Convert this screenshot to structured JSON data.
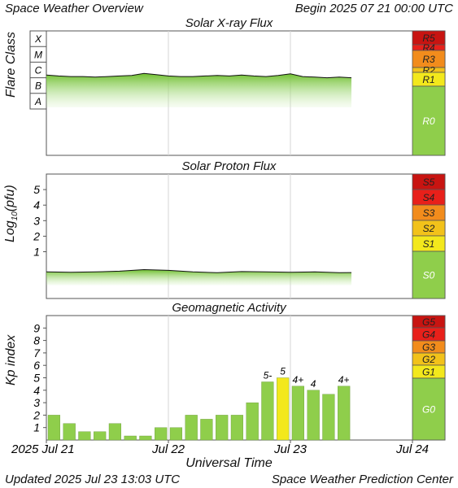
{
  "header": {
    "title": "Space Weather Overview",
    "begin": "Begin 2025 07 21 00:00 UTC"
  },
  "footer": {
    "updated": "Updated 2025 Jul 23 13:03 UTC",
    "source": "Space Weather Prediction Center"
  },
  "colors": {
    "green": "#8fce4b",
    "yellow": "#f3e81c",
    "gold": "#f2c21a",
    "orange": "#f28c1c",
    "red": "#e8201a",
    "dark_red": "#c81411",
    "flux_line": "#111111"
  },
  "chart_data": [
    {
      "type": "area",
      "title": "Solar X-ray Flux",
      "ylabel": "Flare Class",
      "y_classes": [
        "A",
        "B",
        "C",
        "M",
        "X"
      ],
      "x_ticks": [
        "2025 Jul 21",
        "Jul 22",
        "Jul 23",
        "Jul 24"
      ],
      "x_range_days": [
        0,
        3
      ],
      "series": [
        {
          "x_days": [
            0.0,
            0.1,
            0.2,
            0.3,
            0.4,
            0.5,
            0.6,
            0.7,
            0.8,
            0.9,
            1.0,
            1.1,
            1.2,
            1.3,
            1.4,
            1.5,
            1.6,
            1.7,
            1.8,
            1.9,
            2.0,
            2.1,
            2.2,
            2.3,
            2.4,
            2.5
          ],
          "flare_class": [
            "C1.5",
            "C1.3",
            "C1.2",
            "C1.2",
            "C1.1",
            "C1.2",
            "C1.3",
            "C1.4",
            "C1.9",
            "C1.6",
            "C1.3",
            "C1.2",
            "C1.2",
            "C1.3",
            "C1.4",
            "C1.3",
            "C1.5",
            "C1.3",
            "C1.2",
            "C1.4",
            "C1.8",
            "C1.2",
            "C1.1",
            "C1.0",
            "C1.1",
            "C1.0"
          ]
        }
      ],
      "scale": [
        {
          "label": "R5",
          "color": "dark_red"
        },
        {
          "label": "R4",
          "color": "red"
        },
        {
          "label": "R3",
          "color": "orange"
        },
        {
          "label": "R2",
          "color": "gold"
        },
        {
          "label": "R1",
          "color": "yellow"
        },
        {
          "label": "R0",
          "color": "green"
        }
      ]
    },
    {
      "type": "area",
      "title": "Solar Proton Flux",
      "ylabel": "Log10(pfu)",
      "yticks": [
        1,
        2,
        3,
        4,
        5
      ],
      "x_range_days": [
        0,
        3
      ],
      "series": [
        {
          "x_days": [
            0.0,
            0.2,
            0.4,
            0.6,
            0.8,
            1.0,
            1.2,
            1.4,
            1.6,
            1.8,
            2.0,
            2.2,
            2.4,
            2.5
          ],
          "log10_pfu": [
            -0.3,
            -0.32,
            -0.3,
            -0.25,
            -0.15,
            -0.2,
            -0.3,
            -0.35,
            -0.28,
            -0.3,
            -0.32,
            -0.3,
            -0.35,
            -0.34
          ]
        }
      ],
      "scale": [
        {
          "label": "S5",
          "color": "dark_red"
        },
        {
          "label": "S4",
          "color": "red"
        },
        {
          "label": "S3",
          "color": "orange"
        },
        {
          "label": "S2",
          "color": "gold"
        },
        {
          "label": "S1",
          "color": "yellow"
        },
        {
          "label": "S0",
          "color": "green"
        }
      ]
    },
    {
      "type": "bar",
      "title": "Geomagnetic Activity",
      "ylabel": "Kp index",
      "xlabel": "Universal Time",
      "ylim": [
        0,
        10
      ],
      "yticks": [
        1,
        2,
        3,
        4,
        5,
        6,
        7,
        8,
        9
      ],
      "x_ticks": [
        "2025 Jul 21",
        "Jul 22",
        "Jul 23",
        "Jul 24"
      ],
      "bar_width_hours": 3,
      "values": [
        2.0,
        1.33,
        0.67,
        0.67,
        1.33,
        0.33,
        0.33,
        1.0,
        1.0,
        2.0,
        1.67,
        2.0,
        2.0,
        3.0,
        4.67,
        5.0,
        4.33,
        4.0,
        3.67,
        4.33
      ],
      "bar_colors": [
        "green",
        "green",
        "green",
        "green",
        "green",
        "green",
        "green",
        "green",
        "green",
        "green",
        "green",
        "green",
        "green",
        "green",
        "green",
        "yellow",
        "green",
        "green",
        "green",
        "green"
      ],
      "data_labels": [
        "",
        "",
        "",
        "",
        "",
        "",
        "",
        "",
        "",
        "",
        "",
        "",
        "",
        "",
        "5-",
        "5",
        "4+",
        "4",
        "",
        "4+"
      ],
      "scale": [
        {
          "label": "G5",
          "color": "dark_red"
        },
        {
          "label": "G4",
          "color": "red"
        },
        {
          "label": "G3",
          "color": "orange"
        },
        {
          "label": "G2",
          "color": "gold"
        },
        {
          "label": "G1",
          "color": "yellow"
        },
        {
          "label": "G0",
          "color": "green"
        }
      ]
    }
  ],
  "xaxis_title": "Universal Time"
}
